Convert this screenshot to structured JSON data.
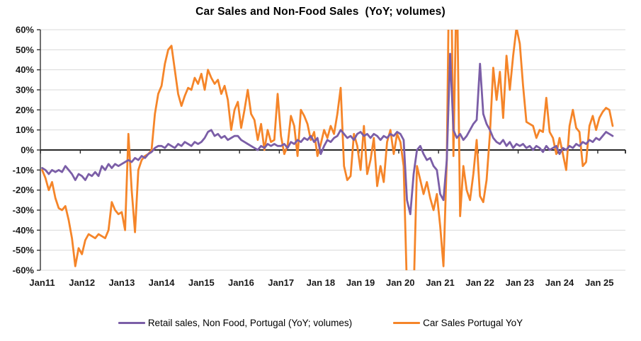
{
  "chart_data": {
    "type": "line",
    "title": "Car Sales and Non-Food Sales  (YoY; volumes)",
    "x_unit": "month",
    "x_start": "2011-01",
    "x_end": "2025-05",
    "x_tick_labels": [
      "Jan11",
      "Jan12",
      "Jan13",
      "Jan14",
      "Jan15",
      "Jan16",
      "Jan17",
      "Jan 18",
      "Jan 19",
      "Jan 20",
      "Jan 21",
      "Jan 22",
      "Jan 23",
      "Jan 24",
      "Jan 25"
    ],
    "y_tick_labels": [
      "60%",
      "50%",
      "40%",
      "30%",
      "20%",
      "10%",
      "0%",
      "-10%",
      "-20%",
      "-30%",
      "-40%",
      "-50%",
      "-60%"
    ],
    "ylim": [
      -60,
      60
    ],
    "y_step": 10,
    "grid": "horizontal",
    "legend_position": "bottom",
    "colors": {
      "retail": "#7B5EA7",
      "car_sales": "#F58529",
      "gridline": "#D9D9D9",
      "axis": "#333333",
      "tick_text": "#1a1a1a"
    },
    "series": [
      {
        "name": "Retail sales, Non Food, Portugal (YoY; volumes)",
        "color": "#7B5EA7",
        "values": [
          -9,
          -10,
          -12,
          -10,
          -11,
          -10,
          -11,
          -8,
          -10,
          -12,
          -15,
          -12,
          -13,
          -15,
          -12,
          -13,
          -11,
          -13,
          -8,
          -10,
          -7,
          -9,
          -7,
          -8,
          -7,
          -6,
          -5,
          -6,
          -4,
          -5,
          -3,
          -4,
          -2,
          -1,
          1,
          2,
          2,
          1,
          3,
          2,
          1,
          3,
          2,
          4,
          3,
          2,
          4,
          3,
          4,
          6,
          9,
          10,
          7,
          8,
          6,
          7,
          5,
          6,
          7,
          7,
          5,
          4,
          3,
          2,
          1,
          0,
          2,
          1,
          3,
          2,
          3,
          2,
          2,
          3,
          1,
          4,
          3,
          5,
          4,
          6,
          5,
          7,
          4,
          6,
          -2,
          2,
          5,
          4,
          6,
          7,
          10,
          8,
          6,
          7,
          5,
          8,
          9,
          7,
          8,
          6,
          8,
          7,
          5,
          7,
          6,
          8,
          7,
          9,
          8,
          5,
          -25,
          -32,
          -12,
          0,
          2,
          -2,
          -5,
          -4,
          -8,
          -10,
          -22,
          -25,
          -5,
          48,
          10,
          6,
          8,
          5,
          7,
          10,
          13,
          15,
          43,
          18,
          13,
          10,
          6,
          4,
          3,
          5,
          2,
          4,
          1,
          3,
          2,
          3,
          1,
          2,
          0,
          2,
          1,
          -1,
          2,
          0,
          1,
          2,
          -2,
          1,
          0,
          2,
          1,
          3,
          2,
          4,
          3,
          5,
          4,
          6,
          5,
          7,
          9,
          8,
          7
        ]
      },
      {
        "name": "Car Sales Portugal YoY",
        "color": "#F58529",
        "values": [
          -10,
          -14,
          -20,
          -16,
          -24,
          -29,
          -30,
          -28,
          -35,
          -44,
          -58,
          -49,
          -52,
          -45,
          -42,
          -43,
          -44,
          -42,
          -43,
          -44,
          -40,
          -26,
          -30,
          -32,
          -31,
          -40,
          8,
          -20,
          -41,
          -10,
          -5,
          -3,
          -2,
          0,
          18,
          28,
          32,
          43,
          50,
          52,
          40,
          28,
          22,
          27,
          31,
          30,
          36,
          33,
          38,
          30,
          40,
          36,
          33,
          35,
          28,
          32,
          25,
          10,
          20,
          24,
          11,
          20,
          30,
          18,
          15,
          5,
          13,
          0,
          10,
          4,
          5,
          28,
          7,
          -2,
          2,
          17,
          12,
          -3,
          20,
          17,
          13,
          5,
          9,
          -3,
          3,
          10,
          6,
          12,
          8,
          18,
          31,
          -8,
          -15,
          -13,
          8,
          2,
          -10,
          12,
          -12,
          -5,
          6,
          -18,
          -8,
          -16,
          4,
          10,
          -2,
          8,
          4,
          -8,
          -70,
          -85,
          -72,
          -8,
          -15,
          -22,
          -16,
          -24,
          -30,
          -22,
          -38,
          -58,
          -5,
          130,
          -3,
          90,
          -33,
          -8,
          -20,
          -25,
          -12,
          5,
          -23,
          -26,
          -15,
          8,
          41,
          25,
          39,
          16,
          47,
          30,
          47,
          61,
          53,
          32,
          14,
          13,
          12,
          6,
          10,
          9,
          26,
          9,
          6,
          -2,
          6,
          -2,
          -10,
          12,
          20,
          11,
          9,
          -8,
          -6,
          12,
          17,
          10,
          16,
          19,
          21,
          20,
          12
        ]
      }
    ]
  },
  "legend": {
    "retail_label": "Retail sales, Non Food, Portugal (YoY; volumes)",
    "car_sales_label": "Car Sales Portugal YoY"
  }
}
